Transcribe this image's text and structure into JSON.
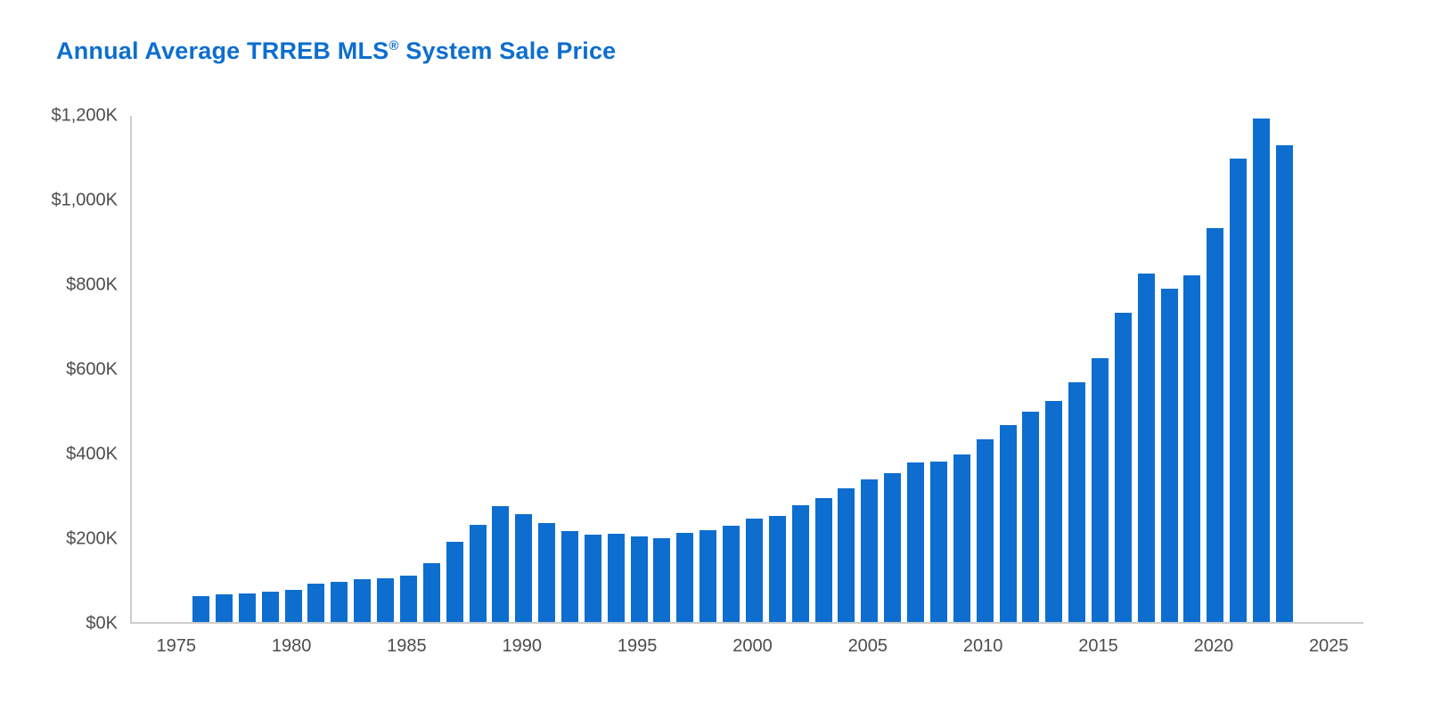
{
  "header": {
    "title_pre": "Annual Average TRREB MLS",
    "title_reg": "®",
    "title_post": " System Sale Price",
    "title_color": "#0d6ecf"
  },
  "chart_data": {
    "type": "bar",
    "title": "Annual Average TRREB MLS® System Sale Price",
    "xlabel": "",
    "ylabel": "",
    "unit": "$K",
    "grid": false,
    "legend": "none",
    "bar_color": "#0d6ecf",
    "axis_color": "#cccccc",
    "tick_label_color": "#4d4d4d",
    "xlim": [
      1973,
      2026.5
    ],
    "ylim": [
      0,
      1200
    ],
    "x_ticks": [
      1975,
      1980,
      1985,
      1990,
      1995,
      2000,
      2005,
      2010,
      2015,
      2020,
      2025
    ],
    "y_ticks": [
      {
        "value": 0,
        "label": "$0K"
      },
      {
        "value": 200,
        "label": "$200K"
      },
      {
        "value": 400,
        "label": "$400K"
      },
      {
        "value": 600,
        "label": "$600K"
      },
      {
        "value": 800,
        "label": "$800K"
      },
      {
        "value": 1000,
        "label": "$1,000K"
      },
      {
        "value": 1200,
        "label": "$1,200K"
      }
    ],
    "x": [
      1976,
      1977,
      1978,
      1979,
      1980,
      1981,
      1982,
      1983,
      1984,
      1985,
      1986,
      1987,
      1988,
      1989,
      1990,
      1991,
      1992,
      1993,
      1994,
      1995,
      1996,
      1997,
      1998,
      1999,
      2000,
      2001,
      2002,
      2003,
      2004,
      2005,
      2006,
      2007,
      2008,
      2009,
      2010,
      2011,
      2012,
      2013,
      2014,
      2015,
      2016,
      2017,
      2018,
      2019,
      2020,
      2021,
      2022,
      2023
    ],
    "values": [
      61.4,
      64.6,
      67.3,
      70.8,
      75.7,
      90.2,
      95.5,
      101.6,
      102.3,
      109.1,
      138.9,
      189.1,
      229.6,
      273.7,
      255.0,
      234.3,
      215.0,
      206.5,
      208.9,
      203.0,
      198.2,
      211.3,
      216.8,
      228.4,
      243.3,
      251.5,
      275.2,
      293.1,
      315.2,
      335.9,
      351.9,
      376.2,
      379.3,
      395.5,
      431.3,
      465.0,
      497.3,
      523.0,
      566.7,
      622.2,
      729.9,
      822.7,
      787.3,
      819.3,
      929.7,
      1095.5,
      1189.9,
      1126.6
    ]
  }
}
